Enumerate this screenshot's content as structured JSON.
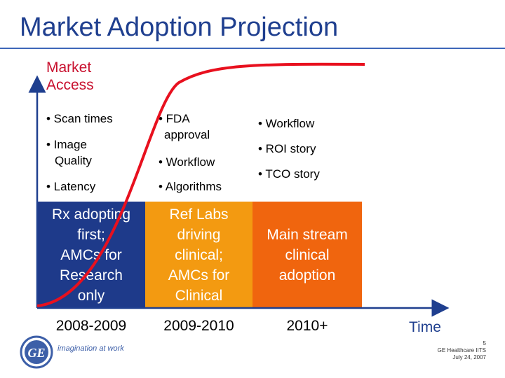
{
  "title": "Market Adoption Projection",
  "axis": {
    "y_label_line1": "Market",
    "y_label_line2": "Access",
    "x_label": "Time"
  },
  "phases": [
    {
      "bullets": [
        "• Scan times",
        "• Image",
        "Quality",
        "• Latency"
      ],
      "bar_text": [
        "Rx adopting",
        "first;",
        "AMCs for",
        "Research",
        "only"
      ],
      "bar_color": "#1e3a8a",
      "period": "2008-2009"
    },
    {
      "bullets": [
        "• FDA",
        "approval",
        "• Workflow",
        "• Algorithms"
      ],
      "bar_text": [
        "Ref Labs",
        "driving",
        "clinical;",
        "AMCs for",
        "Clinical"
      ],
      "bar_color": "#f39a11",
      "period": "2009-2010"
    },
    {
      "bullets": [
        "• Workflow",
        "• ROI story",
        "• TCO story"
      ],
      "bar_text": [
        "Main stream",
        "clinical",
        "adoption"
      ],
      "bar_color": "#f0650e",
      "period": "2010+"
    }
  ],
  "curve_color": "#e8101e",
  "footer": {
    "page": "5",
    "org": "GE Healthcare IITS",
    "date": "July 24, 2007"
  },
  "logo": {
    "brand": "GE",
    "tagline": "imagination at work"
  }
}
